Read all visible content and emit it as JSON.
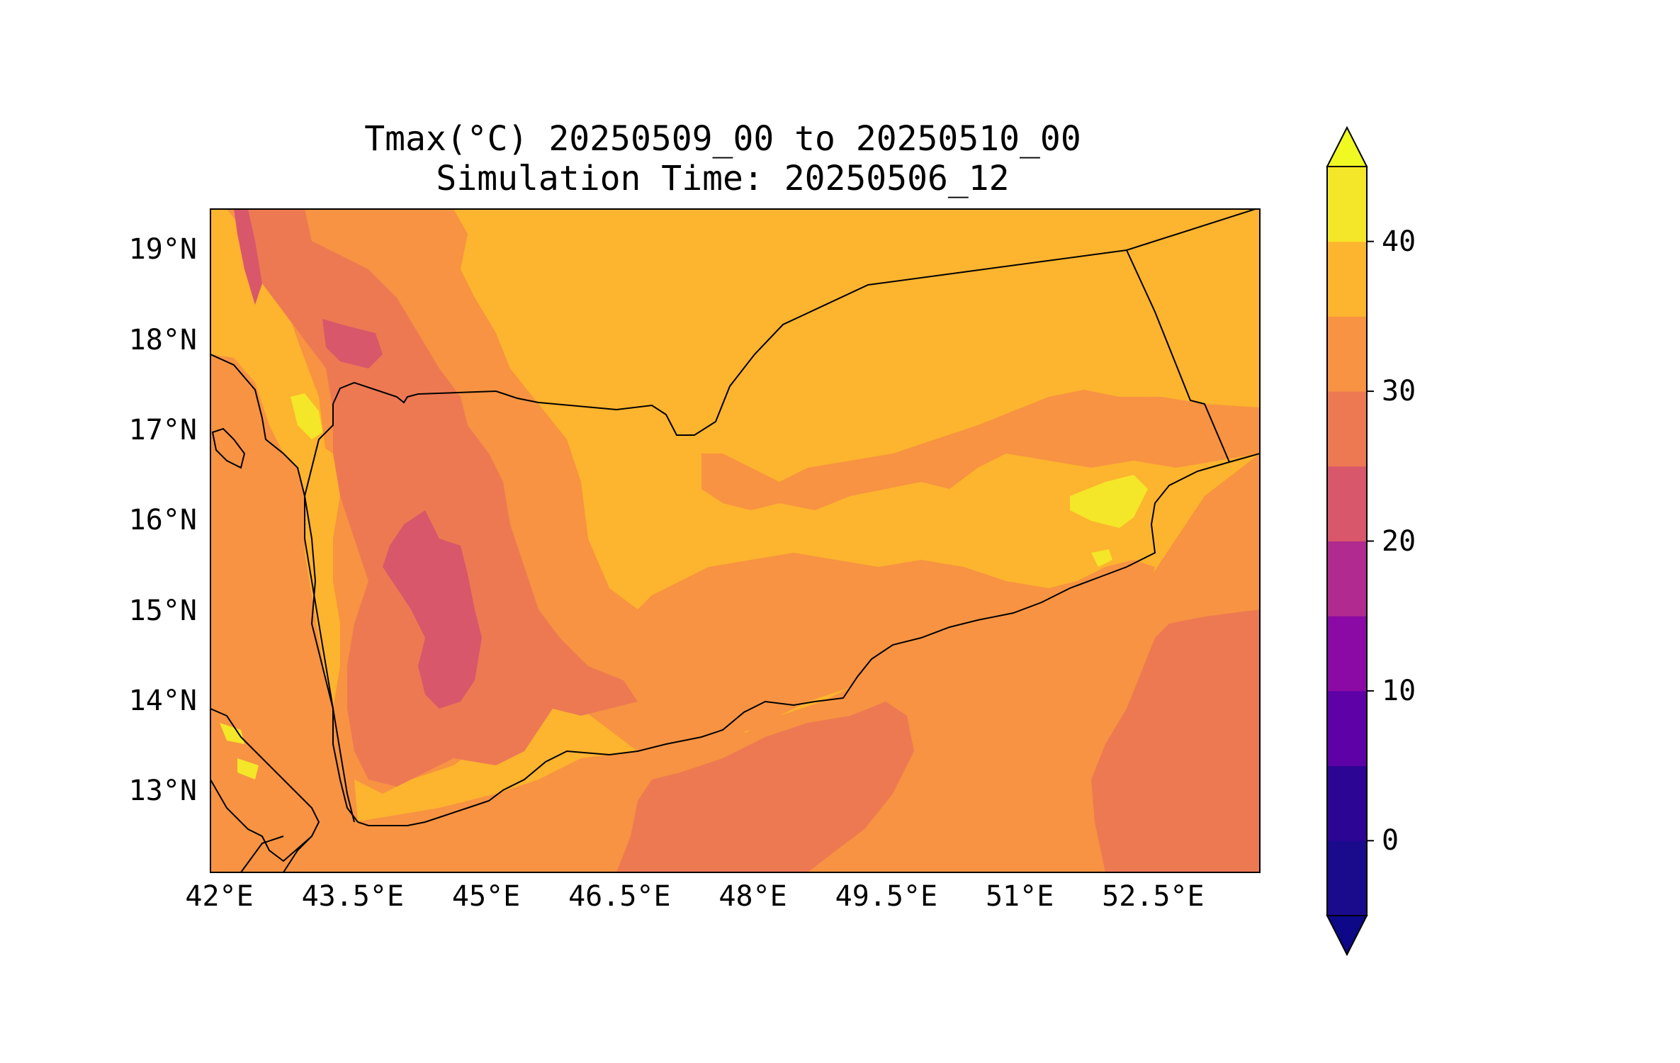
{
  "title": {
    "line1": "Tmax(°C) 20250509_00 to 20250510_00",
    "line2": "Simulation Time: 20250506_12"
  },
  "map": {
    "lon_range": [
      41.9,
      53.7
    ],
    "lat_range": [
      12.1,
      19.45
    ],
    "x_ticks": [
      "42°E",
      "43.5°E",
      "45°E",
      "46.5°E",
      "48°E",
      "49.5°E",
      "51°E",
      "52.5°E"
    ],
    "y_ticks": [
      "19°N",
      "18°N",
      "17°N",
      "16°N",
      "15°N",
      "14°N",
      "13°N"
    ],
    "colors": {
      "lt_5": "#2c0594",
      "5_10": "#5e01a6",
      "10_15": "#8b09a5",
      "15_20": "#b02a8f",
      "20_25": "#d8576b",
      "25_30": "#ed7953",
      "30_35": "#f79342",
      "35_40": "#fdb42f",
      "gt_40": "#f4e628"
    }
  },
  "colorbar": {
    "levels": [
      -5,
      0,
      5,
      10,
      15,
      20,
      25,
      30,
      35,
      40,
      45
    ],
    "tick_labels": [
      "0",
      "10",
      "20",
      "30",
      "40"
    ],
    "tick_values": [
      0,
      10,
      20,
      30,
      40
    ],
    "colors": [
      "#1a0a8c",
      "#2c0594",
      "#5e01a6",
      "#8b09a5",
      "#b02a8f",
      "#d8576b",
      "#ed7953",
      "#f79342",
      "#fdb42f",
      "#f4e628"
    ],
    "extend": "both",
    "under_color": "#0d0887",
    "over_color": "#f0f921"
  }
}
